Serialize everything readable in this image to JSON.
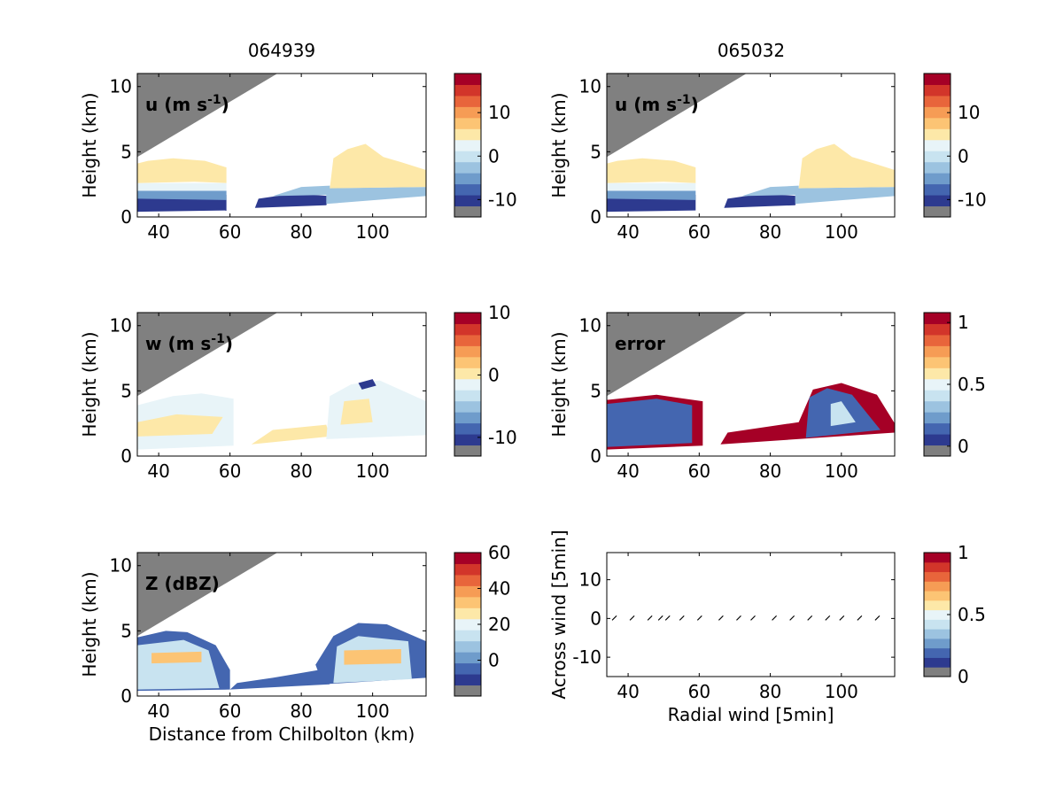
{
  "columns": [
    "064939",
    "065032"
  ],
  "colorbar_colors": [
    "#7f7f7f",
    "#2d3a8f",
    "#4466b0",
    "#6f9ccb",
    "#9cc3e0",
    "#c8e3f0",
    "#e8f4f8",
    "#fde8a8",
    "#fcc474",
    "#f69c55",
    "#e8653b",
    "#d2352a",
    "#a50026"
  ],
  "field_colors": {
    "gray": "#808080",
    "white": "#ffffff"
  },
  "chart_data": [
    {
      "type": "heatmap",
      "panel": "u-064939",
      "title": "064939",
      "label": "u (m s",
      "label_sup": "-1",
      "label_close": ")",
      "ylabel": "Height (km)",
      "xlabel": "",
      "xlim": [
        34,
        115
      ],
      "ylim": [
        0,
        11
      ],
      "xticks": [
        "40",
        "60",
        "80",
        "100"
      ],
      "yticks": [
        "0",
        "5",
        "10"
      ],
      "colorbar": {
        "range": [
          -14,
          19
        ],
        "ticks": [
          "-10",
          "0",
          "10"
        ],
        "tick_values": [
          -10,
          0,
          10
        ]
      }
    },
    {
      "type": "heatmap",
      "panel": "u-065032",
      "title": "065032",
      "label": "u (m s",
      "label_sup": "-1",
      "label_close": ")",
      "ylabel": "Height (km)",
      "xlabel": "",
      "xlim": [
        34,
        115
      ],
      "ylim": [
        0,
        11
      ],
      "xticks": [
        "40",
        "60",
        "80",
        "100"
      ],
      "yticks": [
        "0",
        "5",
        "10"
      ],
      "colorbar": {
        "range": [
          -14,
          19
        ],
        "ticks": [
          "-10",
          "0",
          "10"
        ],
        "tick_values": [
          -10,
          0,
          10
        ]
      }
    },
    {
      "type": "heatmap",
      "panel": "w-064939",
      "label": "w (m s",
      "label_sup": "-1",
      "label_close": ")",
      "ylabel": "Height (km)",
      "xlabel": "",
      "xlim": [
        34,
        115
      ],
      "ylim": [
        0,
        11
      ],
      "xticks": [
        "40",
        "60",
        "80",
        "100"
      ],
      "yticks": [
        "0",
        "5",
        "10"
      ],
      "colorbar": {
        "range": [
          -13,
          10
        ],
        "ticks": [
          "-10",
          "0",
          "10"
        ],
        "tick_values": [
          -10,
          0,
          10
        ]
      }
    },
    {
      "type": "heatmap",
      "panel": "error-065032",
      "label": "error",
      "label_sup": "",
      "label_close": "",
      "ylabel": "Height (km)",
      "xlabel": "",
      "xlim": [
        34,
        115
      ],
      "ylim": [
        0,
        11
      ],
      "xticks": [
        "40",
        "60",
        "80",
        "100"
      ],
      "yticks": [
        "0",
        "5",
        "10"
      ],
      "colorbar": {
        "range": [
          -0.08,
          1.08
        ],
        "ticks": [
          "0",
          "0.5",
          "1"
        ],
        "tick_values": [
          0,
          0.5,
          1
        ]
      }
    },
    {
      "type": "heatmap",
      "panel": "Z-064939",
      "label": "Z (dBZ)",
      "label_sup": "",
      "label_close": "",
      "ylabel": "Height (km)",
      "xlabel": "Distance from Chilbolton (km)",
      "xlim": [
        34,
        115
      ],
      "ylim": [
        0,
        11
      ],
      "xticks": [
        "40",
        "60",
        "80",
        "100"
      ],
      "yticks": [
        "0",
        "5",
        "10"
      ],
      "colorbar": {
        "range": [
          -20,
          60
        ],
        "ticks": [
          "0",
          "20",
          "40",
          "60"
        ],
        "tick_values": [
          0,
          20,
          40,
          60
        ]
      }
    },
    {
      "type": "scatter",
      "panel": "wind-vectors",
      "xlabel": "Radial wind [5min]",
      "ylabel": "Across wind [5min]",
      "xlim": [
        34,
        115
      ],
      "ylim": [
        -15,
        17
      ],
      "xticks": [
        "40",
        "60",
        "80",
        "100"
      ],
      "yticks": [
        "-10",
        "0",
        "10"
      ],
      "x": [
        36,
        41,
        46,
        49,
        51,
        55,
        60,
        66,
        71,
        75,
        81,
        86,
        91,
        96,
        100,
        105,
        110
      ],
      "y": [
        0,
        0,
        0,
        0,
        0,
        0,
        0,
        0,
        0,
        0,
        0,
        0,
        0,
        0,
        0,
        0,
        0
      ],
      "colorbar": {
        "range": [
          0,
          1
        ],
        "ticks": [
          "0",
          "0.5",
          "1"
        ],
        "tick_values": [
          0,
          0.5,
          1
        ]
      }
    }
  ]
}
